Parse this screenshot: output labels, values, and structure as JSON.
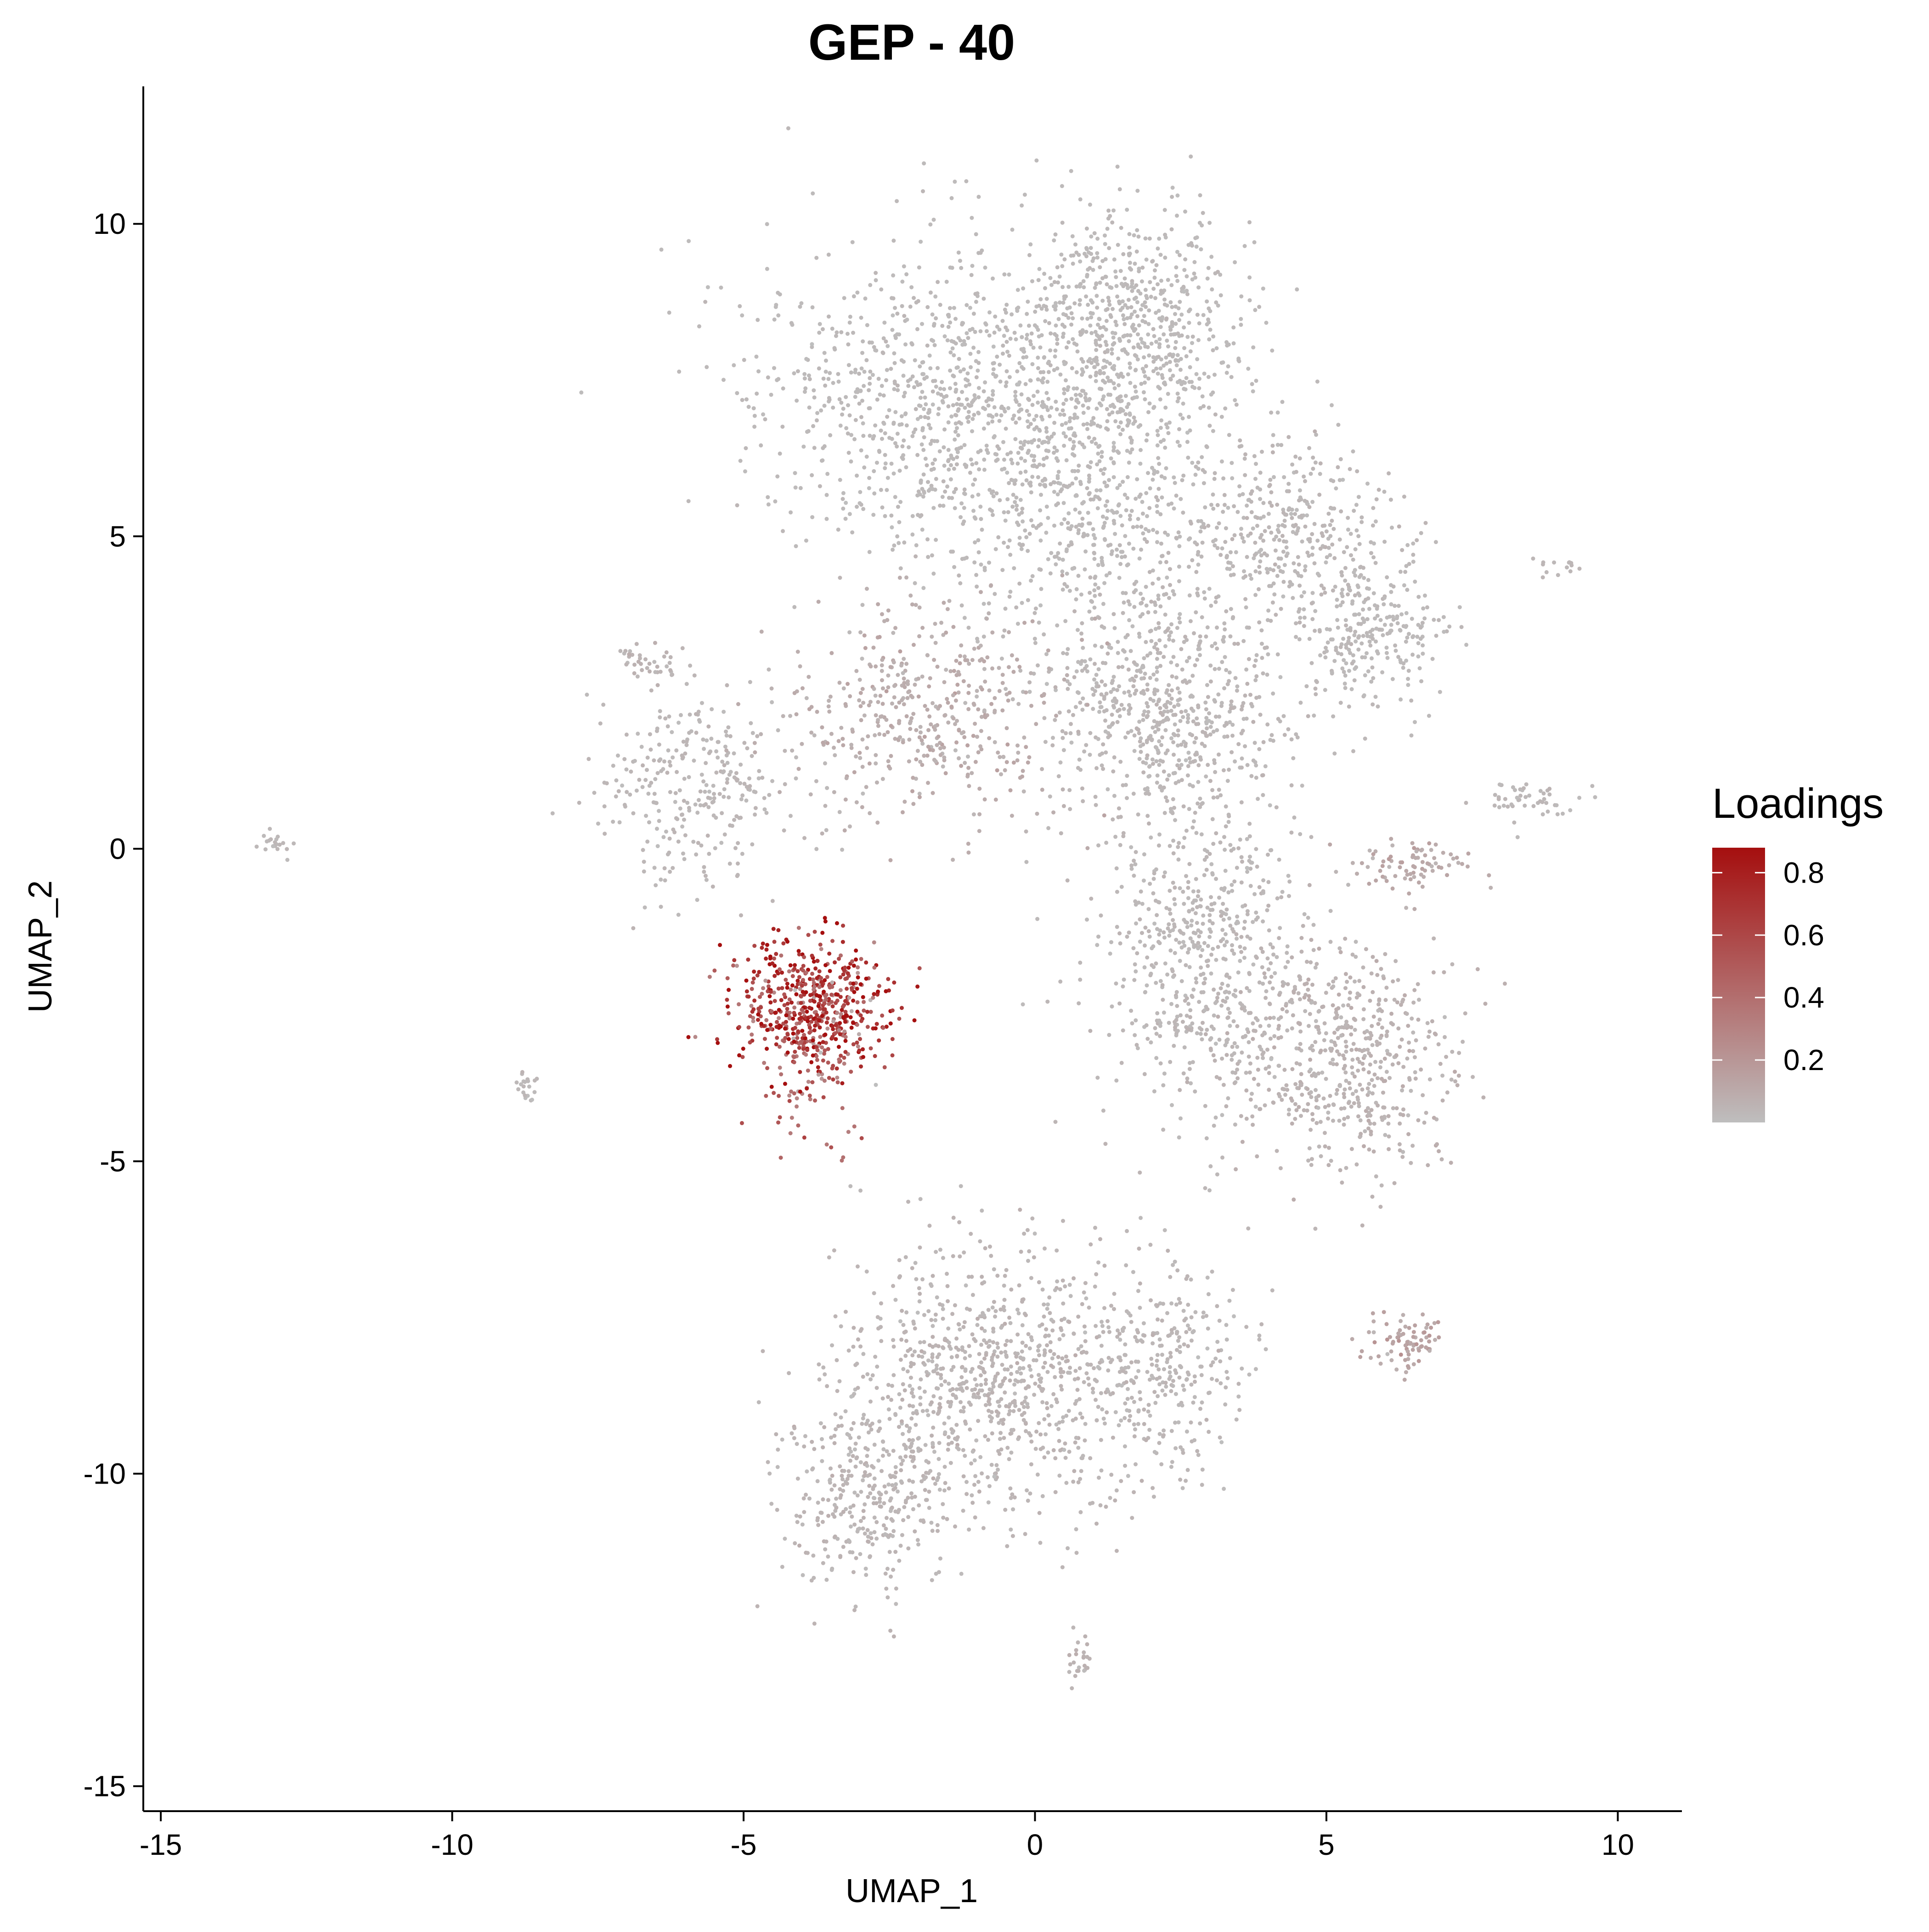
{
  "chart_data": {
    "type": "scatter",
    "title": "GEP - 40",
    "xlabel": "UMAP_1",
    "ylabel": "UMAP_2",
    "xlim": [
      -15.3,
      11.1
    ],
    "ylim": [
      -15.4,
      12.2
    ],
    "x_ticks": [
      -15,
      -10,
      -5,
      0,
      5,
      10
    ],
    "x_tick_labels": [
      "-15",
      "-10",
      "-5",
      "0",
      "5",
      "10"
    ],
    "y_ticks": [
      -15,
      -10,
      -5,
      0,
      5,
      10
    ],
    "y_tick_labels": [
      "-15",
      "-10",
      "-5",
      "0",
      "5",
      "10"
    ],
    "grid": false,
    "legend": {
      "title": "Loadings",
      "placement": "right",
      "breaks": [
        0.2,
        0.4,
        0.6,
        0.8
      ],
      "labels": [
        "0.2",
        "0.4",
        "0.6",
        "0.8"
      ],
      "range": [
        0.0,
        0.88
      ]
    },
    "colors": {
      "low": "#bebebe",
      "high": "#a50f0f"
    },
    "clusters": [
      {
        "name": "",
        "cx": -1.5,
        "cy": 7.3,
        "sx": 2.4,
        "sy": 1.6,
        "n": 900,
        "loading": 0.02
      },
      {
        "name": "",
        "cx": 1.6,
        "cy": 8.3,
        "sx": 1.4,
        "sy": 1.2,
        "n": 650,
        "loading": 0.02
      },
      {
        "name": "",
        "cx": 0.9,
        "cy": 5.5,
        "sx": 1.9,
        "sy": 1.5,
        "n": 600,
        "loading": 0.02
      },
      {
        "name": "",
        "cx": 4.3,
        "cy": 5.0,
        "sx": 1.3,
        "sy": 1.0,
        "n": 350,
        "loading": 0.03
      },
      {
        "name": "",
        "cx": 5.8,
        "cy": 3.5,
        "sx": 0.9,
        "sy": 0.8,
        "n": 250,
        "loading": 0.02
      },
      {
        "name": "",
        "cx": 2.3,
        "cy": 2.2,
        "sx": 1.5,
        "sy": 1.4,
        "n": 700,
        "loading": 0.03
      },
      {
        "name": "",
        "cx": -1.8,
        "cy": 2.2,
        "sx": 1.6,
        "sy": 1.2,
        "n": 450,
        "loading": 0.08
      },
      {
        "name": "",
        "cx": 2.8,
        "cy": -1.8,
        "sx": 1.1,
        "sy": 1.6,
        "n": 550,
        "loading": 0.03
      },
      {
        "name": "",
        "cx": 5.2,
        "cy": -3.3,
        "sx": 1.4,
        "sy": 1.2,
        "n": 600,
        "loading": 0.05
      },
      {
        "name": "",
        "cx": -5.8,
        "cy": 1.0,
        "sx": 1.2,
        "sy": 1.1,
        "n": 300,
        "loading": 0.03
      },
      {
        "name": "",
        "cx": -3.8,
        "cy": -2.5,
        "sx": 0.9,
        "sy": 0.7,
        "n": 500,
        "loading": 0.68
      },
      {
        "name": "",
        "cx": -3.9,
        "cy": -3.3,
        "sx": 0.6,
        "sy": 0.9,
        "n": 120,
        "loading": 0.45
      },
      {
        "name": "",
        "cx": -0.6,
        "cy": -8.5,
        "sx": 1.9,
        "sy": 1.4,
        "n": 900,
        "loading": 0.04
      },
      {
        "name": "",
        "cx": -2.8,
        "cy": -10.3,
        "sx": 1.0,
        "sy": 1.0,
        "n": 350,
        "loading": 0.04
      },
      {
        "name": "",
        "cx": 2.3,
        "cy": -8.3,
        "sx": 0.8,
        "sy": 1.2,
        "n": 250,
        "loading": 0.03
      },
      {
        "name": "",
        "cx": 6.4,
        "cy": -7.9,
        "sx": 0.4,
        "sy": 0.3,
        "n": 80,
        "loading": 0.12
      },
      {
        "name": "",
        "cx": 6.5,
        "cy": -0.3,
        "sx": 0.7,
        "sy": 0.3,
        "n": 80,
        "loading": 0.1
      },
      {
        "name": "",
        "cx": 8.5,
        "cy": 0.8,
        "sx": 0.6,
        "sy": 0.2,
        "n": 50,
        "loading": 0.03
      },
      {
        "name": "",
        "cx": -13.0,
        "cy": 0.1,
        "sx": 0.2,
        "sy": 0.15,
        "n": 20,
        "loading": 0.03
      },
      {
        "name": "",
        "cx": -8.7,
        "cy": -3.8,
        "sx": 0.2,
        "sy": 0.15,
        "n": 20,
        "loading": 0.03
      },
      {
        "name": "",
        "cx": 0.8,
        "cy": -13.0,
        "sx": 0.15,
        "sy": 0.3,
        "n": 25,
        "loading": 0.05
      },
      {
        "name": "",
        "cx": -6.6,
        "cy": 3.0,
        "sx": 0.35,
        "sy": 0.25,
        "n": 35,
        "loading": 0.05
      },
      {
        "name": "",
        "cx": 9.0,
        "cy": 4.5,
        "sx": 0.3,
        "sy": 0.1,
        "n": 15,
        "loading": 0.03
      }
    ]
  }
}
